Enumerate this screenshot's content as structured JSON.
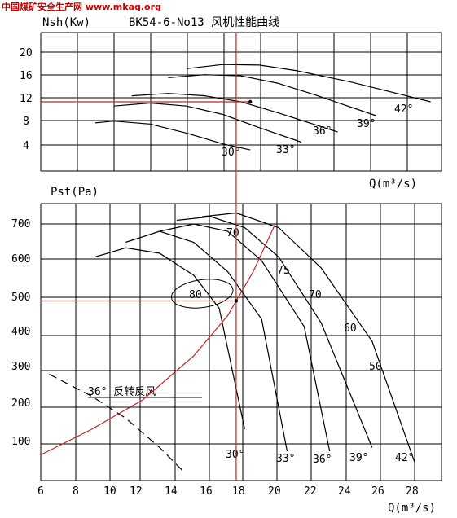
{
  "watermark": "中国煤矿安全生产网 www.mkaq.org",
  "chart_data": [
    {
      "type": "line",
      "title": "BK54-6-No13  风机性能曲线",
      "ylabel": "Nsh(Kw)",
      "xlabel": "Q(m³/s)",
      "xlim": [
        6,
        28
      ],
      "ylim": [
        0,
        23
      ],
      "yticks": [
        "4",
        "8",
        "12",
        "16",
        "20"
      ],
      "grid": true,
      "series": [
        {
          "name": "30°",
          "x": [
            9,
            10,
            12,
            14,
            16,
            17.5
          ],
          "y": [
            8,
            8.3,
            7.8,
            6.3,
            4.5,
            3.5
          ]
        },
        {
          "name": "33°",
          "x": [
            10,
            12,
            14,
            16,
            18,
            20.3
          ],
          "y": [
            10.8,
            11.3,
            10.8,
            9.4,
            7.2,
            4.8
          ]
        },
        {
          "name": "36°",
          "x": [
            11,
            13,
            15,
            17,
            19,
            22.3
          ],
          "y": [
            12.5,
            12.9,
            12.5,
            11.5,
            9.7,
            6.5
          ]
        },
        {
          "name": "39°",
          "x": [
            13,
            15,
            17,
            19,
            21,
            24.4
          ],
          "y": [
            15.5,
            16,
            15.8,
            14.6,
            12.7,
            9.2
          ]
        },
        {
          "name": "42°",
          "x": [
            14,
            16,
            18,
            20,
            23,
            27.4
          ],
          "y": [
            17,
            17.7,
            17.6,
            16.7,
            14.8,
            11.5
          ]
        }
      ],
      "operating_point": {
        "x": 17.5,
        "y": 11.5
      }
    },
    {
      "type": "line",
      "ylabel": "Pst(Pa)",
      "xlabel": "Q(m³/s)",
      "xlim": [
        6,
        30
      ],
      "ylim": [
        0,
        780
      ],
      "xticks": [
        "6",
        "8",
        "10",
        "12",
        "14",
        "16",
        "18",
        "20",
        "22",
        "24",
        "26",
        "28"
      ],
      "yticks": [
        "100",
        "200",
        "300",
        "400",
        "500",
        "600",
        "700"
      ],
      "grid": true,
      "annotation_reverse": "36° 反转反风",
      "blade_angle_labels": [
        "30°",
        "33°",
        "36°",
        "39°",
        "42°"
      ],
      "efficiency_labels": [
        "80",
        "75",
        "70",
        "60",
        "50",
        "70"
      ],
      "series": [
        {
          "name": "30°",
          "x": [
            9.2,
            11,
            13,
            15,
            16.5,
            18
          ],
          "y": [
            610,
            635,
            620,
            560,
            470,
            140
          ]
        },
        {
          "name": "33°",
          "x": [
            11,
            13,
            15,
            17,
            19,
            20.5
          ],
          "y": [
            650,
            680,
            650,
            570,
            440,
            80
          ]
        },
        {
          "name": "36°",
          "x": [
            13,
            15,
            17,
            19,
            21.5,
            23
          ],
          "y": [
            680,
            700,
            680,
            600,
            420,
            80
          ]
        },
        {
          "name": "39°",
          "x": [
            14,
            16,
            18,
            20,
            22.5,
            25.5
          ],
          "y": [
            710,
            720,
            690,
            610,
            430,
            90
          ]
        },
        {
          "name": "42°",
          "x": [
            15.5,
            17.5,
            20,
            22.5,
            25.5,
            28
          ],
          "y": [
            720,
            730,
            690,
            580,
            380,
            50
          ]
        }
      ],
      "reverse_curve": {
        "name": "36° 反转反风",
        "x": [
          6.5,
          9,
          11,
          13,
          14.5
        ],
        "y": [
          290,
          230,
          170,
          90,
          20
        ]
      },
      "system_curve": {
        "x": [
          6,
          9,
          12,
          15,
          17,
          18.5,
          19.8
        ],
        "y": [
          70,
          140,
          220,
          340,
          450,
          570,
          700
        ]
      },
      "operating_point": {
        "x": 17.5,
        "y": 490
      }
    }
  ]
}
